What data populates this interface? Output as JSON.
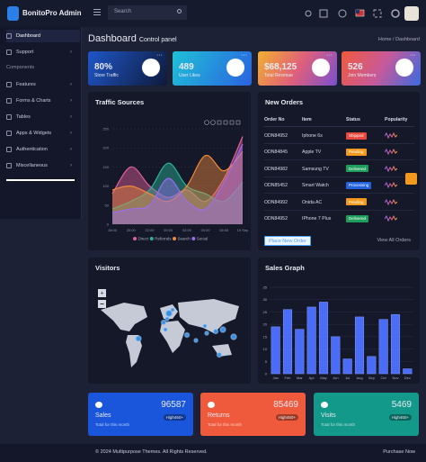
{
  "topbar": {
    "brand": "BonitoPro Admin",
    "search_placeholder": "Search"
  },
  "sidebar": {
    "top_items": [
      "Dashboard",
      "Support"
    ],
    "section": "Components",
    "items": [
      "Features",
      "Forms & Charts",
      "Tables",
      "Apps & Widgets",
      "Authentication",
      "Miscellaneous"
    ]
  },
  "header": {
    "title": "Dashboard",
    "subtitle": "Control panel",
    "breadcrumb": [
      "Home",
      "Dashboard"
    ]
  },
  "stats": [
    {
      "value": "80%",
      "label": "Store Traffic"
    },
    {
      "value": "489",
      "label": "User Likes"
    },
    {
      "value": "$68,125",
      "label": "Total Revenue"
    },
    {
      "value": "526",
      "label": "Join Members"
    }
  ],
  "traffic": {
    "title": "Traffic Sources",
    "chart": {
      "type": "area",
      "categories": [
        "18:00",
        "20:00",
        "22:00",
        "00:00",
        "02:00",
        "04:00",
        "06:00",
        "19 Sep"
      ],
      "ylim": [
        0,
        250
      ],
      "yticks": [
        0,
        50,
        100,
        150,
        200,
        250
      ],
      "grid": true,
      "series": [
        {
          "name": "Direct",
          "color": "#e0609a",
          "values": [
            80,
            150,
            100,
            70,
            90,
            60,
            120,
            230
          ]
        },
        {
          "name": "Referrals",
          "color": "#2bb39a",
          "values": [
            40,
            60,
            90,
            160,
            100,
            80,
            60,
            110
          ]
        },
        {
          "name": "Search",
          "color": "#f08a3c",
          "values": [
            90,
            100,
            80,
            60,
            100,
            180,
            140,
            190
          ]
        },
        {
          "name": "Social",
          "color": "#9b6cf0",
          "values": [
            30,
            40,
            50,
            120,
            60,
            40,
            110,
            210
          ]
        }
      ]
    }
  },
  "orders": {
    "title": "New Orders",
    "columns": [
      "Order No",
      "Item",
      "Status",
      "Popularity"
    ],
    "rows": [
      {
        "order": "ODN84952",
        "item": "Iphone 6s",
        "status": "Shipped",
        "status_color": "#e8473b"
      },
      {
        "order": "ODN84845",
        "item": "Apple TV",
        "status": "Pending",
        "status_color": "#f39a1e"
      },
      {
        "order": "ODN84982",
        "item": "Samsung TV",
        "status": "Delivered",
        "status_color": "#1e9e5a"
      },
      {
        "order": "ODN85452",
        "item": "Smart Watch",
        "status": "Processing",
        "status_color": "#2463e0"
      },
      {
        "order": "ODN84992",
        "item": "Onida AC",
        "status": "Pending",
        "status_color": "#f39a1e"
      },
      {
        "order": "ODN84952",
        "item": "IPhone 7 Plus",
        "status": "Delivered",
        "status_color": "#1e9e5a"
      }
    ],
    "actions": [
      "Place New Order",
      "View All Orders"
    ]
  },
  "visitors": {
    "title": "Visitors"
  },
  "sales": {
    "title": "Sales Graph",
    "chart": {
      "type": "bar",
      "categories": [
        "Jan",
        "Feb",
        "Mar",
        "Apr",
        "May",
        "Jun",
        "Jul",
        "Aug",
        "Sep",
        "Oct",
        "Nov",
        "Dec"
      ],
      "values": [
        19,
        26,
        18,
        27,
        29,
        15,
        6,
        23,
        7,
        22,
        24,
        2
      ],
      "color": "#4a6cf7",
      "ylim": [
        0,
        35
      ],
      "yticks": [
        0,
        5,
        10,
        15,
        20,
        25,
        30,
        35
      ],
      "grid": true
    }
  },
  "summary": [
    {
      "label": "Sales",
      "value": "96587",
      "badge": "High460+",
      "note": "Total for this month"
    },
    {
      "label": "Returns",
      "value": "85469",
      "badge": "High460+",
      "note": "Total for this month"
    },
    {
      "label": "Visits",
      "value": "5469",
      "badge": "High460+",
      "note": "Total for this month"
    }
  ],
  "footer": {
    "copyright": "© 2024 Multipurpose Themes. All Rights Reserved.",
    "link": "Purchase Now"
  }
}
